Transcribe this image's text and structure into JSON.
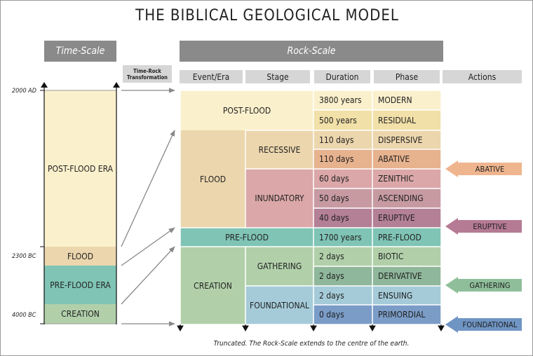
{
  "title": "THE BIBLICAL GEOLOGICAL MODEL",
  "headers": {
    "time_scale": "Time-Scale",
    "rock_scale": "Rock-Scale",
    "transformation": "Time-Rock Transformation",
    "columns": [
      "Event/Era",
      "Stage",
      "Duration",
      "Phase",
      "Actions"
    ]
  },
  "time_scale": {
    "dates": [
      "2000 AD",
      "2300 BC",
      "4000 BC"
    ],
    "eras": [
      "POST-FLOOD ERA",
      "FLOOD",
      "PRE-FLOOD ERA",
      "CREATION"
    ]
  },
  "rock_scale": {
    "events": [
      "POST-FLOOD",
      "FLOOD",
      "PRE-FLOOD",
      "CREATION"
    ],
    "stages": [
      "RECESSIVE",
      "INUNDATORY",
      "GATHERING",
      "FOUNDATIONAL"
    ],
    "rows": [
      {
        "duration": "3800 years",
        "phase": "MODERN"
      },
      {
        "duration": "500 years",
        "phase": "RESIDUAL"
      },
      {
        "duration": "110 days",
        "phase": "DISPERSIVE"
      },
      {
        "duration": "110 days",
        "phase": "ABATIVE"
      },
      {
        "duration": "60 days",
        "phase": "ZENITHIC"
      },
      {
        "duration": "50 days",
        "phase": "ASCENDING"
      },
      {
        "duration": "40 days",
        "phase": "ERUPTIVE"
      },
      {
        "duration": "1700 years",
        "phase": "PRE-FLOOD"
      },
      {
        "duration": "2 days",
        "phase": "BIOTIC"
      },
      {
        "duration": "2 days",
        "phase": "DERIVATIVE"
      },
      {
        "duration": "2 days",
        "phase": "ENSUING"
      },
      {
        "duration": "0 days",
        "phase": "PRIMORDIAL"
      }
    ]
  },
  "actions": [
    "ABATIVE",
    "ERUPTIVE",
    "GATHERING",
    "FOUNDATIONAL"
  ],
  "footnote": "Truncated. The Rock-Scale extends to the centre of the earth.",
  "colors": {
    "post_flood": "#fbf0cc",
    "flood": "#ecd6ad",
    "pre_flood": "#7fc4b4",
    "creation": "#b1d0aa",
    "recessive": "#ecd6ad",
    "inundatory": "#dba7a8",
    "gathering": "#b1d0aa",
    "foundational": "#a5cbd9",
    "action_abative": "#efb58f",
    "action_eruptive": "#b57a94",
    "action_gathering": "#8fbf9a",
    "action_foundational": "#6f95c4"
  }
}
